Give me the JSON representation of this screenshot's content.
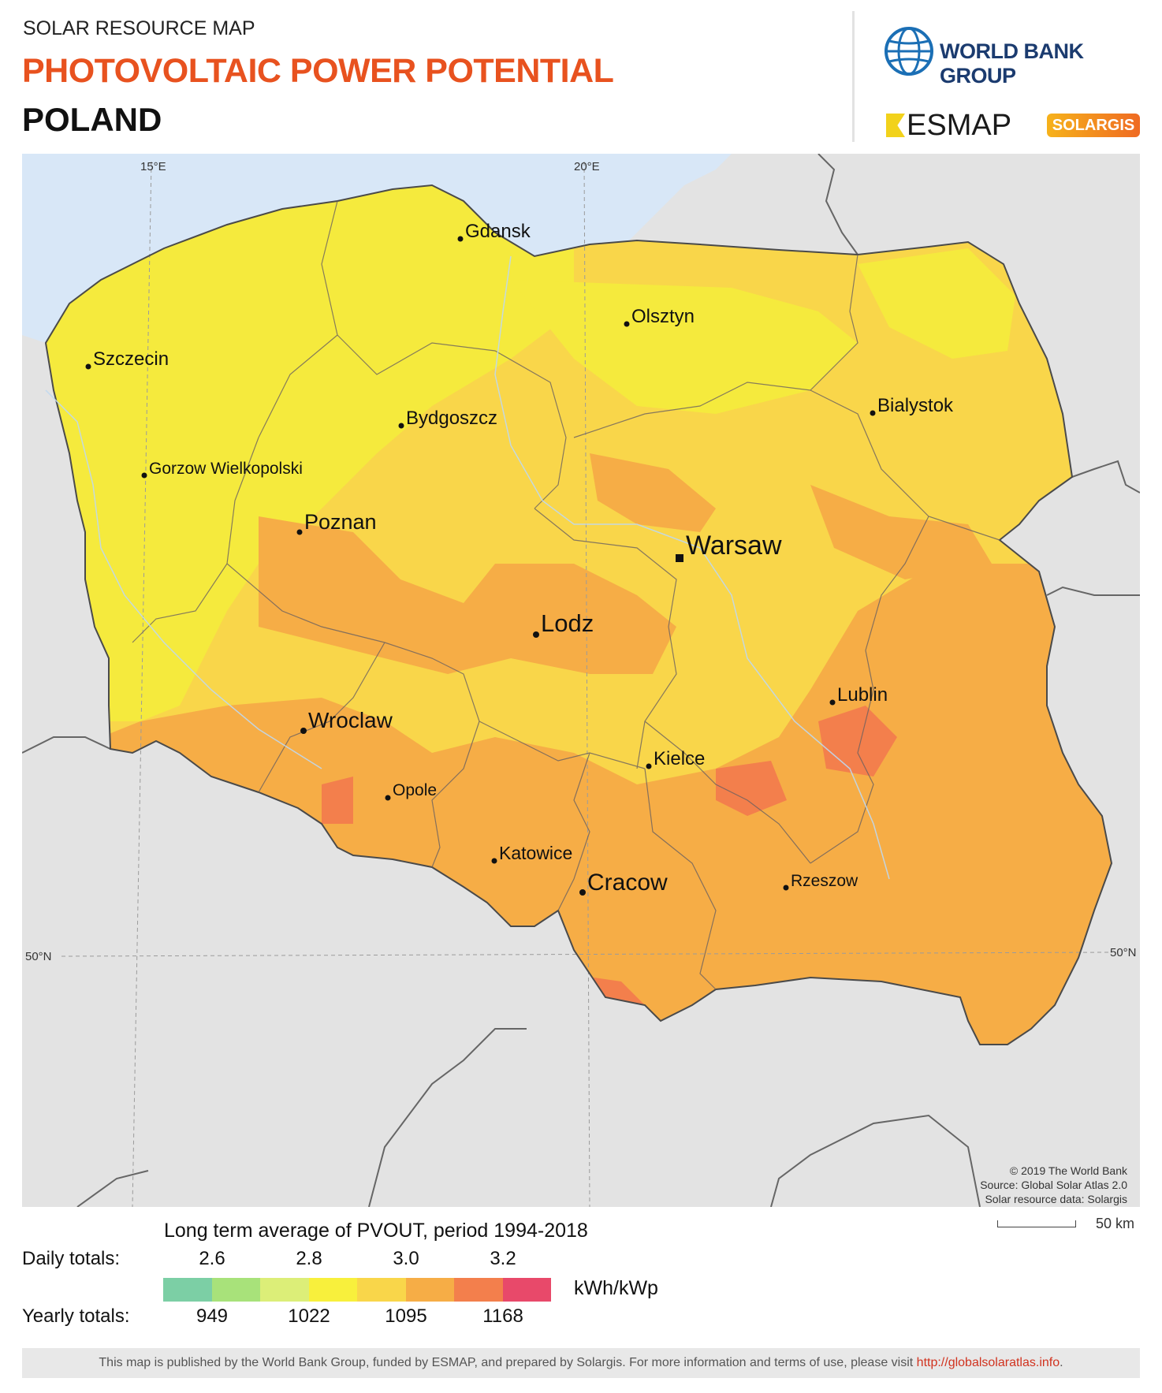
{
  "header": {
    "eyebrow": "SOLAR RESOURCE MAP",
    "title": "PHOTOVOLTAIC POWER POTENTIAL",
    "country": "POLAND"
  },
  "logos": {
    "world_bank": "WORLD BANK GROUP",
    "esmap": "ESMAP",
    "solargis": "SOLARGIS"
  },
  "map": {
    "graticule": {
      "lon_labels": [
        "15°E",
        "20°E"
      ],
      "lat_label_left": "50°N",
      "lat_label_right": "50°N"
    },
    "cities": [
      {
        "name": "Gdansk",
        "type": "city"
      },
      {
        "name": "Olsztyn",
        "type": "city"
      },
      {
        "name": "Szczecin",
        "type": "city"
      },
      {
        "name": "Bydgoszcz",
        "type": "city"
      },
      {
        "name": "Bialystok",
        "type": "city"
      },
      {
        "name": "Gorzow Wielkopolski",
        "type": "city"
      },
      {
        "name": "Poznan",
        "type": "city"
      },
      {
        "name": "Warsaw",
        "type": "capital"
      },
      {
        "name": "Lodz",
        "type": "city"
      },
      {
        "name": "Lublin",
        "type": "city"
      },
      {
        "name": "Wroclaw",
        "type": "city"
      },
      {
        "name": "Kielce",
        "type": "city"
      },
      {
        "name": "Opole",
        "type": "city"
      },
      {
        "name": "Katowice",
        "type": "city"
      },
      {
        "name": "Cracow",
        "type": "city"
      },
      {
        "name": "Rzeszow",
        "type": "city"
      }
    ],
    "credit": [
      "© 2019 The World Bank",
      "Source: Global Solar Atlas 2.0",
      "Solar resource data: Solargis"
    ],
    "colors": {
      "sea": "#d8e7f7",
      "land_outside": "#e3e3e3",
      "border": "#555555"
    }
  },
  "legend": {
    "title": "Long term average of PVOUT, period 1994-2018",
    "daily_label": "Daily totals:",
    "yearly_label": "Yearly totals:",
    "daily_values": [
      "2.6",
      "2.8",
      "3.0",
      "3.2"
    ],
    "yearly_values": [
      "949",
      "1022",
      "1095",
      "1168"
    ],
    "unit": "kWh/kWp",
    "colors": [
      "#7ccfa5",
      "#a8e27a",
      "#dcee78",
      "#f8f03c",
      "#f9d64a",
      "#f6ad46",
      "#f37f4c",
      "#e8496a"
    ],
    "scale_label": "50 km"
  },
  "footer": {
    "text": "This map is published by the World Bank Group, funded by ESMAP, and prepared by Solargis. For more information and terms of use, please visit ",
    "link": "http://globalsolaratlas.info",
    "end": "."
  }
}
